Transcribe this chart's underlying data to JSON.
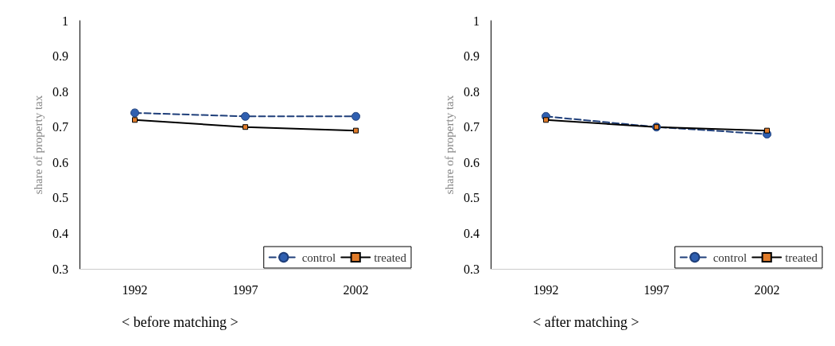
{
  "chart_data": [
    {
      "type": "line",
      "title": "< before matching >",
      "ylabel": "share of property tax",
      "categories": [
        "1992",
        "1997",
        "2002"
      ],
      "ylim": [
        0.3,
        1
      ],
      "yticks": [
        0.3,
        0.4,
        0.5,
        0.6,
        0.7,
        0.8,
        0.9,
        1
      ],
      "grid": false,
      "legend": "bottom right",
      "series": [
        {
          "name": "control",
          "color": "#1f3f7a",
          "values": [
            0.74,
            0.73,
            0.73
          ],
          "line_style": "dashed",
          "marker": "circle"
        },
        {
          "name": "treated",
          "color": "#000000",
          "values": [
            0.72,
            0.7,
            0.69
          ],
          "line_style": "solid",
          "marker": "square"
        }
      ]
    },
    {
      "type": "line",
      "title": "< after matching >",
      "ylabel": "share of property tax",
      "categories": [
        "1992",
        "1997",
        "2002"
      ],
      "ylim": [
        0.3,
        1
      ],
      "yticks": [
        0.3,
        0.4,
        0.5,
        0.6,
        0.7,
        0.8,
        0.9,
        1
      ],
      "grid": false,
      "legend": "bottom right",
      "series": [
        {
          "name": "control",
          "color": "#1f3f7a",
          "values": [
            0.73,
            0.7,
            0.68
          ],
          "line_style": "dashed",
          "marker": "circle"
        },
        {
          "name": "treated",
          "color": "#000000",
          "values": [
            0.72,
            0.7,
            0.69
          ],
          "line_style": "solid",
          "marker": "square"
        }
      ]
    }
  ]
}
